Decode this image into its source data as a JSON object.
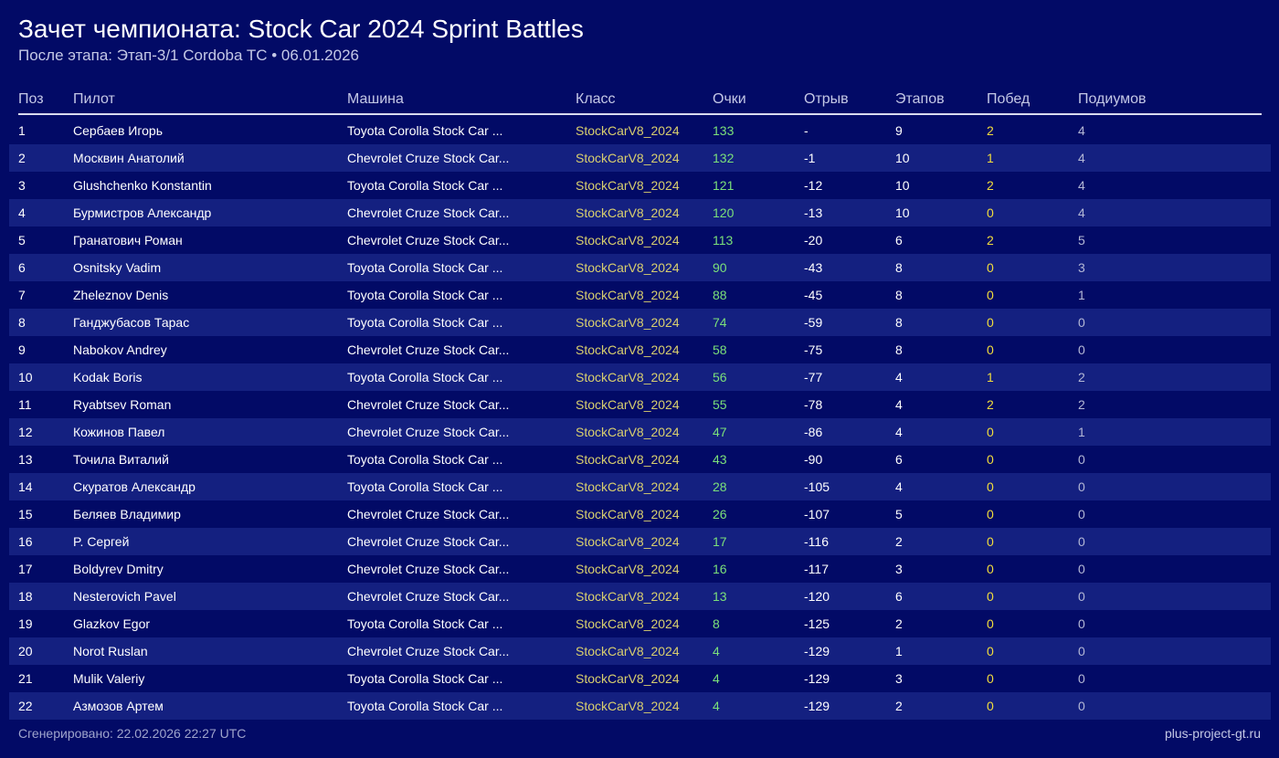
{
  "header": {
    "title": "Зачет чемпионата: Stock Car 2024 Sprint Battles",
    "subtitle": "После этапа: Этап-3/1 Cordoba TC • 06.01.2026"
  },
  "colors": {
    "background": "#020a66",
    "row_alt": "#142080",
    "class": "#d9cf6e",
    "points": "#7be07a",
    "wins": "#f2dd3c"
  },
  "table": {
    "columns": [
      "Поз",
      "Пилот",
      "Машина",
      "Класс",
      "Очки",
      "Отрыв",
      "Этапов",
      "Побед",
      "Подиумов"
    ],
    "rows": [
      [
        "1",
        "Сербаев Игорь",
        "Toyota Corolla Stock Car ...",
        "StockCarV8_2024",
        "133",
        "-",
        "9",
        "2",
        "4"
      ],
      [
        "2",
        "Москвин Анатолий",
        "Chevrolet Cruze Stock Car...",
        "StockCarV8_2024",
        "132",
        "-1",
        "10",
        "1",
        "4"
      ],
      [
        "3",
        "Glushchenko Konstantin",
        "Toyota Corolla Stock Car ...",
        "StockCarV8_2024",
        "121",
        "-12",
        "10",
        "2",
        "4"
      ],
      [
        "4",
        "Бурмистров Александр",
        "Chevrolet Cruze Stock Car...",
        "StockCarV8_2024",
        "120",
        "-13",
        "10",
        "0",
        "4"
      ],
      [
        "5",
        "Гранатович Роман",
        "Chevrolet Cruze Stock Car...",
        "StockCarV8_2024",
        "113",
        "-20",
        "6",
        "2",
        "5"
      ],
      [
        "6",
        "Osnitsky Vadim",
        "Toyota Corolla Stock Car ...",
        "StockCarV8_2024",
        "90",
        "-43",
        "8",
        "0",
        "3"
      ],
      [
        "7",
        "Zheleznov Denis",
        "Toyota Corolla Stock Car ...",
        "StockCarV8_2024",
        "88",
        "-45",
        "8",
        "0",
        "1"
      ],
      [
        "8",
        "Ганджубасов Тарас",
        "Toyota Corolla Stock Car ...",
        "StockCarV8_2024",
        "74",
        "-59",
        "8",
        "0",
        "0"
      ],
      [
        "9",
        "Nabokov Andrey",
        "Chevrolet Cruze Stock Car...",
        "StockCarV8_2024",
        "58",
        "-75",
        "8",
        "0",
        "0"
      ],
      [
        "10",
        "Kodak Boris",
        "Toyota Corolla Stock Car ...",
        "StockCarV8_2024",
        "56",
        "-77",
        "4",
        "1",
        "2"
      ],
      [
        "11",
        "Ryabtsev Roman",
        "Chevrolet Cruze Stock Car...",
        "StockCarV8_2024",
        "55",
        "-78",
        "4",
        "2",
        "2"
      ],
      [
        "12",
        "Кожинов Павел",
        "Chevrolet Cruze Stock Car...",
        "StockCarV8_2024",
        "47",
        "-86",
        "4",
        "0",
        "1"
      ],
      [
        "13",
        "Точила Виталий",
        "Toyota Corolla Stock Car ...",
        "StockCarV8_2024",
        "43",
        "-90",
        "6",
        "0",
        "0"
      ],
      [
        "14",
        "Скуратов Александр",
        "Toyota Corolla Stock Car ...",
        "StockCarV8_2024",
        "28",
        "-105",
        "4",
        "0",
        "0"
      ],
      [
        "15",
        "Беляев Владимир",
        "Chevrolet Cruze Stock Car...",
        "StockCarV8_2024",
        "26",
        "-107",
        "5",
        "0",
        "0"
      ],
      [
        "16",
        "P. Сергей",
        "Chevrolet Cruze Stock Car...",
        "StockCarV8_2024",
        "17",
        "-116",
        "2",
        "0",
        "0"
      ],
      [
        "17",
        "Boldyrev Dmitry",
        "Chevrolet Cruze Stock Car...",
        "StockCarV8_2024",
        "16",
        "-117",
        "3",
        "0",
        "0"
      ],
      [
        "18",
        "Nesterovich Pavel",
        "Chevrolet Cruze Stock Car...",
        "StockCarV8_2024",
        "13",
        "-120",
        "6",
        "0",
        "0"
      ],
      [
        "19",
        "Glazkov Egor",
        "Toyota Corolla Stock Car ...",
        "StockCarV8_2024",
        "8",
        "-125",
        "2",
        "0",
        "0"
      ],
      [
        "20",
        "Norot Ruslan",
        "Chevrolet Cruze Stock Car...",
        "StockCarV8_2024",
        "4",
        "-129",
        "1",
        "0",
        "0"
      ],
      [
        "21",
        "Mulik Valeriy",
        "Toyota Corolla Stock Car ...",
        "StockCarV8_2024",
        "4",
        "-129",
        "3",
        "0",
        "0"
      ],
      [
        "22",
        "Азмозов Артем",
        "Toyota Corolla Stock Car ...",
        "StockCarV8_2024",
        "4",
        "-129",
        "2",
        "0",
        "0"
      ]
    ]
  },
  "footer": {
    "generated": "Сгенерировано: 22.02.2026 22:27 UTC",
    "site": "plus-project-gt.ru"
  }
}
